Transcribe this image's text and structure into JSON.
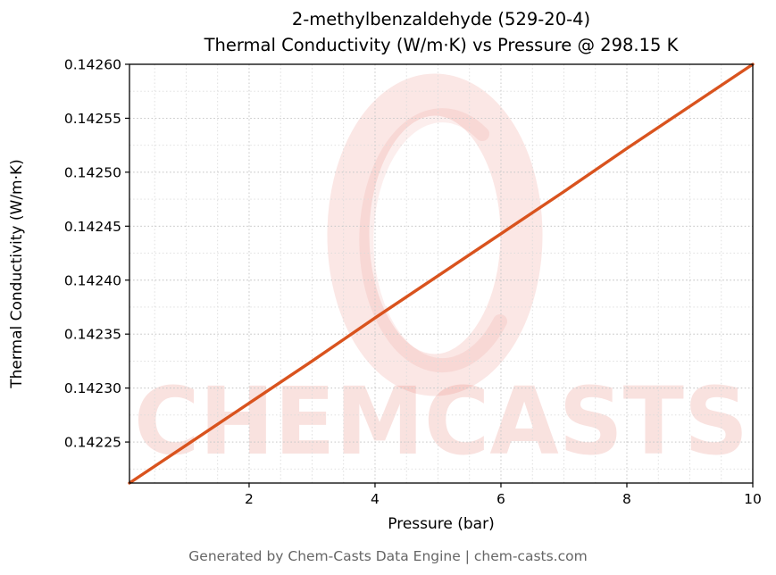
{
  "header": {
    "line1": "2-methylbenzaldehyde (529-20-4)",
    "line2": "Thermal Conductivity (W/m·K) vs Pressure @ 298.15 K"
  },
  "footer": {
    "text": "Generated by Chem-Casts Data Engine | chem-casts.com"
  },
  "watermark": {
    "text": "CHEMCASTS",
    "logo": "brush-ring-logo",
    "color": "#e0574a"
  },
  "chart_data": {
    "type": "line",
    "title": "2-methylbenzaldehyde (529-20-4)\nThermal Conductivity (W/m·K) vs Pressure @ 298.15 K",
    "xlabel": "Pressure (bar)",
    "ylabel": "Thermal Conductivity (W/m·K)",
    "xlim": [
      0.1,
      10
    ],
    "ylim": [
      0.142212,
      0.1426
    ],
    "xticks": [
      2,
      4,
      6,
      8,
      10
    ],
    "xtick_labels": [
      "2",
      "4",
      "6",
      "8",
      "10"
    ],
    "yticks": [
      0.14225,
      0.1423,
      0.14235,
      0.1424,
      0.14245,
      0.1425,
      0.14255,
      0.1426
    ],
    "ytick_labels": [
      "0.14225",
      "0.14230",
      "0.14235",
      "0.14240",
      "0.14245",
      "0.14250",
      "0.14255",
      "0.14260"
    ],
    "x_minor_step": 0.5,
    "y_minor_step": 2.5e-05,
    "grid": true,
    "legend": false,
    "line_color": "#d9531e",
    "series": [
      {
        "name": "Thermal Conductivity (W/m·K)",
        "x": [
          0.1,
          1,
          2,
          3,
          4,
          5,
          6,
          7,
          8,
          9,
          10
        ],
        "y": [
          0.142212,
          0.142247,
          0.142286,
          0.142325,
          0.142365,
          0.142404,
          0.142443,
          0.142482,
          0.142522,
          0.142561,
          0.1426
        ]
      }
    ]
  }
}
